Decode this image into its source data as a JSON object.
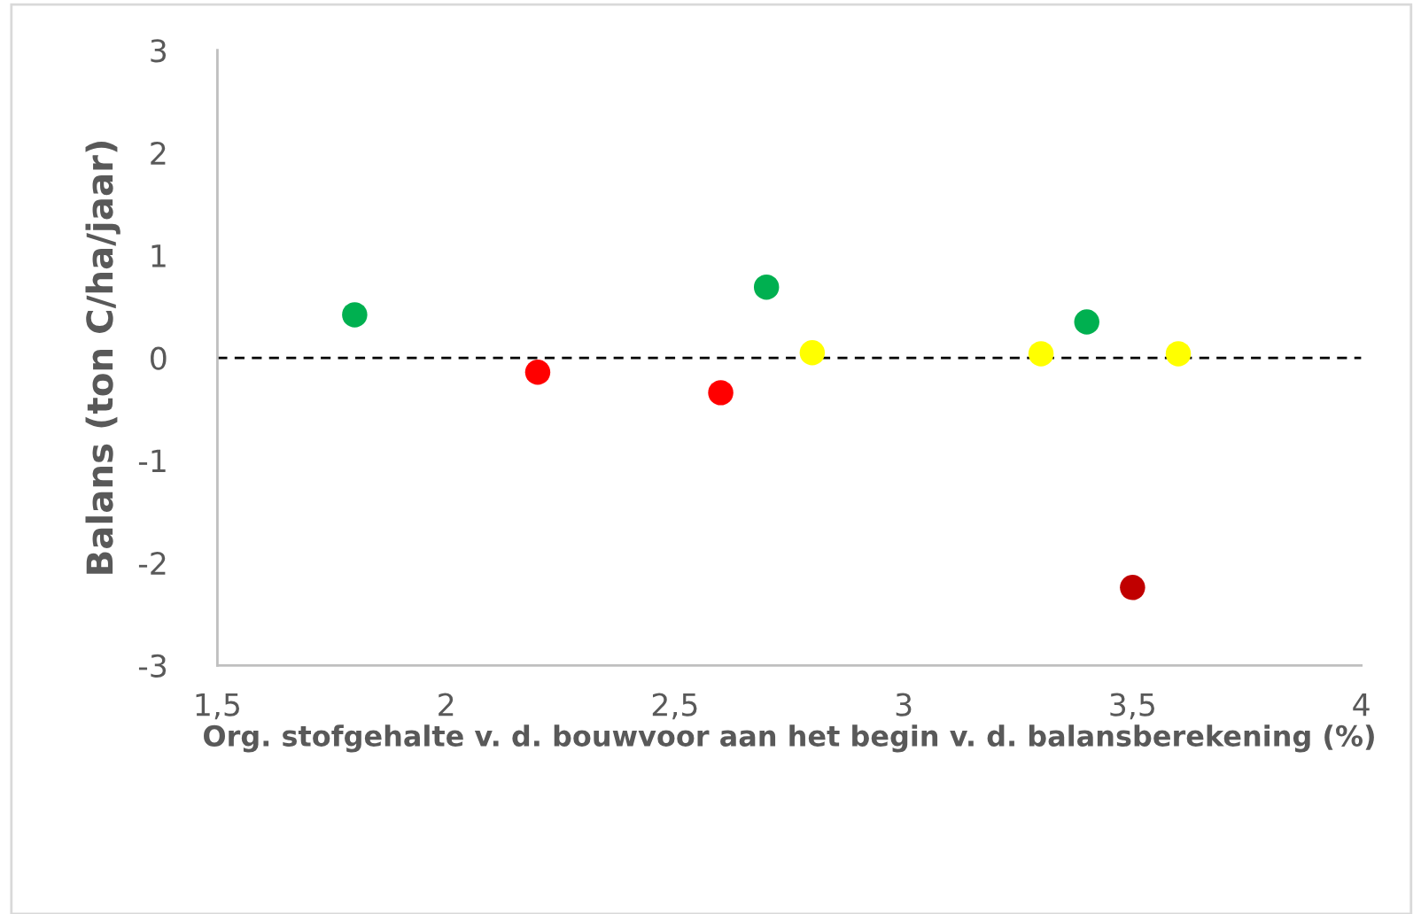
{
  "chart_data": {
    "type": "scatter",
    "xlabel": "Org. stofgehalte v. d. bouwvoor aan het begin v. d. balansberekening (%)",
    "ylabel": "Balans (ton C/ha/jaar)",
    "series": [
      {
        "color": "#00b050",
        "x": [
          1.8,
          2.7,
          3.4
        ],
        "values": [
          0.42,
          0.69,
          0.35
        ]
      },
      {
        "color": "#ff0000",
        "x": [
          2.2,
          2.6
        ],
        "values": [
          -0.14,
          -0.34
        ]
      },
      {
        "color": "#ffff00",
        "x": [
          2.8,
          3.3,
          3.6
        ],
        "values": [
          0.05,
          0.04,
          0.04
        ]
      },
      {
        "color": "#c00000",
        "x": [
          3.5
        ],
        "values": [
          -2.24
        ]
      }
    ],
    "xlim": [
      1.5,
      4
    ],
    "xticks": [
      {
        "value": 1.5,
        "label": "1,5"
      },
      2,
      {
        "value": 2.5,
        "label": "2,5"
      },
      3,
      {
        "value": 3.5,
        "label": "3,5"
      },
      4
    ],
    "ylim": [
      -3,
      3
    ],
    "yticks": [
      -3,
      -2,
      -1,
      0,
      1,
      2,
      3
    ],
    "ref_lines": [
      {
        "axis": "y",
        "value": 0,
        "color": "#000000",
        "line_style": "dashed"
      }
    ],
    "grid": false,
    "legend": false,
    "marker": "circle"
  }
}
